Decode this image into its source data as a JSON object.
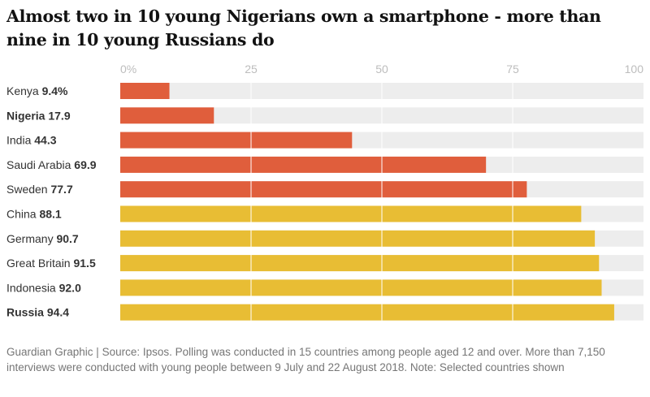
{
  "title": "Almost two in 10 young Nigerians own a smartphone - more than nine in 10 young Russians do",
  "footer": "Guardian Graphic | Source: Ipsos. Polling was conducted in 15 countries among people aged 12 and over. More than 7,150 interviews were conducted with young people between 9 July and 22 August 2018. Note: Selected countries shown",
  "colors": {
    "low": "#e05e3c",
    "high": "#e8bd34",
    "track": "#ededed",
    "gridline": "#ffffff"
  },
  "chart_data": {
    "type": "bar",
    "orientation": "horizontal",
    "xlim": [
      0,
      100
    ],
    "ticks": [
      "0%",
      "25",
      "50",
      "75",
      "100"
    ],
    "tick_values": [
      0,
      25,
      50,
      75,
      100
    ],
    "grid": true,
    "categories": [
      "Kenya",
      "Nigeria",
      "India",
      "Saudi Arabia",
      "Sweden",
      "China",
      "Germany",
      "Great Britain",
      "Indonesia",
      "Russia"
    ],
    "values": [
      9.4,
      17.9,
      44.3,
      69.9,
      77.7,
      88.1,
      90.7,
      91.5,
      92.0,
      94.4
    ],
    "value_labels": [
      "9.4%",
      "17.9",
      "44.3",
      "69.9",
      "77.7",
      "88.1",
      "90.7",
      "91.5",
      "92.0",
      "94.4"
    ],
    "bold_categories": [
      "Nigeria",
      "Russia"
    ],
    "group": [
      "low",
      "low",
      "low",
      "low",
      "low",
      "high",
      "high",
      "high",
      "high",
      "high"
    ]
  }
}
